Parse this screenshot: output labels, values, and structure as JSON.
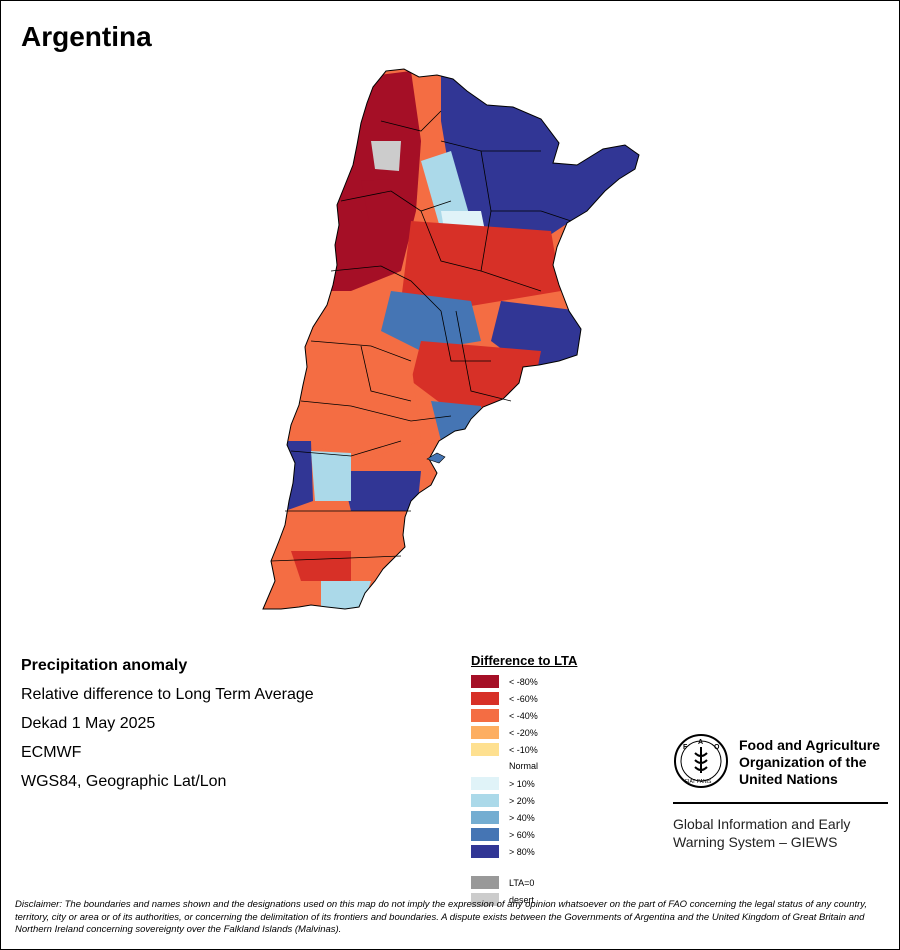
{
  "title": "Argentina",
  "info": {
    "heading": "Precipitation anomaly",
    "lines": [
      "Relative difference to Long Term Average",
      "Dekad 1 May 2025",
      "ECMWF",
      "WGS84, Geographic Lat/Lon"
    ]
  },
  "legend": {
    "title": "Difference to LTA",
    "dry": [
      {
        "label": "< -80%",
        "color": "#a50f26"
      },
      {
        "label": "< -60%",
        "color": "#d73027"
      },
      {
        "label": "< -40%",
        "color": "#f46d43"
      },
      {
        "label": "< -20%",
        "color": "#fdae61"
      },
      {
        "label": "< -10%",
        "color": "#fee090"
      }
    ],
    "normal_label": "Normal",
    "wet": [
      {
        "label": "> 10%",
        "color": "#e0f3f8"
      },
      {
        "label": "> 20%",
        "color": "#abd9e9"
      },
      {
        "label": "> 40%",
        "color": "#74add1"
      },
      {
        "label": "> 60%",
        "color": "#4575b4"
      },
      {
        "label": "> 80%",
        "color": "#313695"
      }
    ],
    "extra": [
      {
        "label": "LTA=0",
        "color": "#999999"
      },
      {
        "label": "desert",
        "color": "#cccccc"
      }
    ]
  },
  "org": {
    "logo_text": "FAO",
    "logo_motto": "FIAT PANIS",
    "name_lines": [
      "Food and Agriculture",
      "Organization of the",
      "United Nations"
    ],
    "system_lines": [
      "Global Information and Early",
      "Warning System – GIEWS"
    ]
  },
  "disclaimer": "Disclaimer: The boundaries and names shown and the designations used on this map do not imply the expression of any opinion whatsoever on the part of FAO concerning the legal status of any country, territory, city or area or of its authorities, or concerning the delimitation of its frontiers and boundaries. A dispute exists between the Governments of Argentina and the United Kingdom of Great Britain and Northern Ireland concerning sovereignty over the Falkland Islands (Malvinas)."
}
